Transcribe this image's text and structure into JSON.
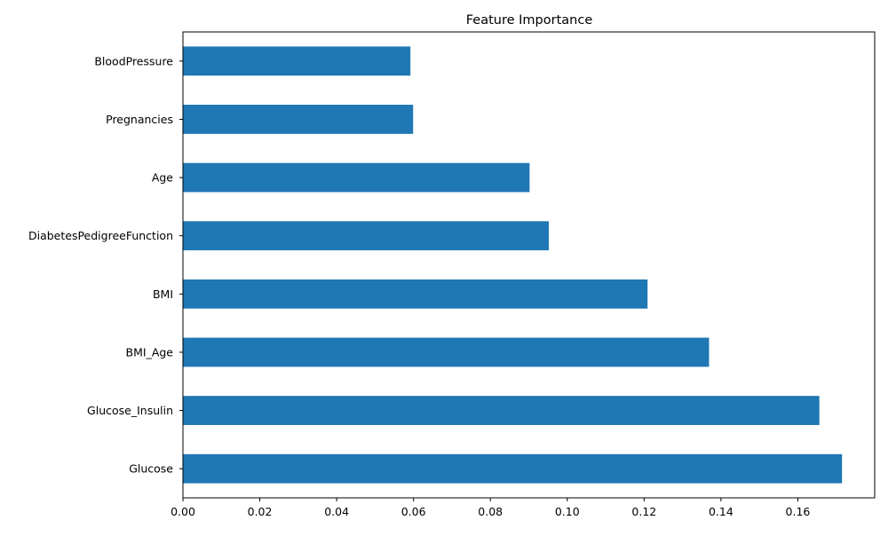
{
  "chart_data": {
    "type": "bar",
    "orientation": "horizontal",
    "title": "Feature Importance",
    "xlabel": "",
    "ylabel": "",
    "categories": [
      "Glucose",
      "Glucose_Insulin",
      "BMI_Age",
      "BMI",
      "DiabetesPedigreeFunction",
      "Age",
      "Pregnancies",
      "BloodPressure"
    ],
    "values": [
      0.1715,
      0.1656,
      0.1369,
      0.1209,
      0.0952,
      0.0902,
      0.0599,
      0.0592
    ],
    "xlim": [
      0,
      0.18
    ],
    "xticks": [
      "0.00",
      "0.02",
      "0.04",
      "0.06",
      "0.08",
      "0.10",
      "0.12",
      "0.14",
      "0.16"
    ],
    "grid": false,
    "legend": "none",
    "bar_color": "#1f77b4"
  }
}
